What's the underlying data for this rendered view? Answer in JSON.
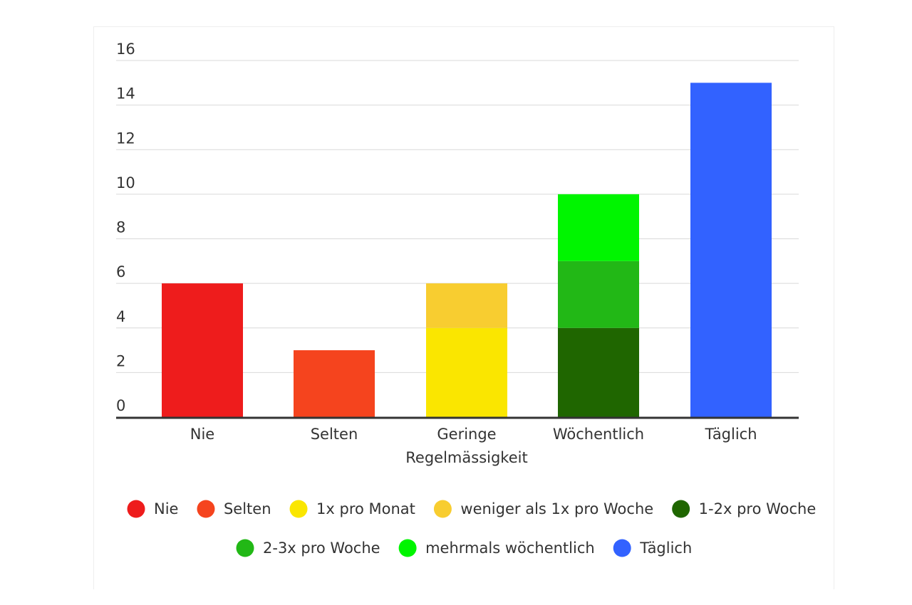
{
  "chart_data": {
    "type": "bar",
    "stacked": true,
    "categories": [
      [
        "Nie"
      ],
      [
        "Selten"
      ],
      [
        "Geringe",
        "Regelmässigkeit"
      ],
      [
        "Wöchentlich"
      ],
      [
        "Täglich"
      ]
    ],
    "ylim": [
      0,
      16
    ],
    "yticks": [
      0,
      2,
      4,
      6,
      8,
      10,
      12,
      14,
      16
    ],
    "grid": true,
    "legend_position": "bottom",
    "series": [
      {
        "name": "Nie",
        "color": "#ee1c1c",
        "values": [
          6,
          0,
          0,
          0,
          0
        ]
      },
      {
        "name": "Selten",
        "color": "#f5441e",
        "values": [
          0,
          3,
          0,
          0,
          0
        ]
      },
      {
        "name": "1x pro Monat",
        "color": "#fae600",
        "values": [
          0,
          0,
          4,
          0,
          0
        ]
      },
      {
        "name": "weniger als 1x pro Woche",
        "color": "#f8cd30",
        "values": [
          0,
          0,
          2,
          0,
          0
        ]
      },
      {
        "name": "1-2x pro Woche",
        "color": "#1f6600",
        "values": [
          0,
          0,
          0,
          4,
          0
        ]
      },
      {
        "name": "2-3x pro Woche",
        "color": "#22b816",
        "values": [
          0,
          0,
          0,
          3,
          0
        ]
      },
      {
        "name": "mehrmals wöchentlich",
        "color": "#00f500",
        "values": [
          0,
          0,
          0,
          3,
          0
        ]
      },
      {
        "name": "Täglich",
        "color": "#3262ff",
        "values": [
          0,
          0,
          0,
          0,
          15
        ]
      }
    ]
  }
}
